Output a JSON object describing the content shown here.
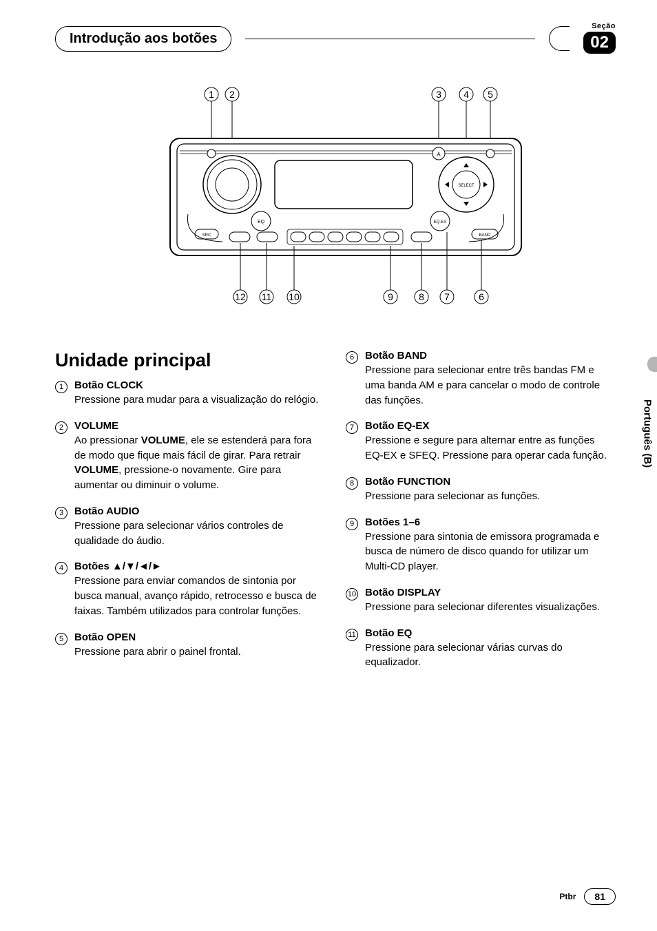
{
  "header": {
    "title": "Introdução aos botões",
    "section_label": "Seção",
    "section_number": "02"
  },
  "diagram": {
    "callouts_top": [
      "1",
      "2",
      "3",
      "4",
      "5"
    ],
    "callouts_bottom": [
      "12",
      "11",
      "10",
      "9",
      "8",
      "7",
      "6"
    ],
    "label_select": "SELECT",
    "label_eq": "EQ",
    "label_eqex": "EQ-EX",
    "label_src": "SRC",
    "label_band": "BAND",
    "label_a": "A",
    "stroke": "#000000",
    "fill": "#ffffff"
  },
  "main_heading": "Unidade principal",
  "items_left": [
    {
      "num": "1",
      "title": "Botão CLOCK",
      "desc": "Pressione para mudar para a visualização do relógio."
    },
    {
      "num": "2",
      "title": "VOLUME",
      "desc": "Ao pressionar <b>VOLUME</b>, ele se estenderá para fora de modo que fique mais fácil de girar. Para retrair <b>VOLUME</b>, pressione-o novamente. Gire para aumentar ou diminuir o volume."
    },
    {
      "num": "3",
      "title": "Botão AUDIO",
      "desc": "Pressione para selecionar vários controles de qualidade do áudio."
    },
    {
      "num": "4",
      "title": "Botões ▲/▼/◄/►",
      "desc": "Pressione para enviar comandos de sintonia por busca manual, avanço rápido, retrocesso e busca de faixas. Também utilizados para controlar funções."
    },
    {
      "num": "5",
      "title": "Botão OPEN",
      "desc": "Pressione para abrir o painel frontal."
    }
  ],
  "items_right": [
    {
      "num": "6",
      "title": "Botão BAND",
      "desc": "Pressione para selecionar entre três bandas FM e uma banda AM e para cancelar o modo de controle das funções."
    },
    {
      "num": "7",
      "title": "Botão EQ-EX",
      "desc": "Pressione e segure para alternar entre as funções EQ-EX e SFEQ. Pressione para operar cada função."
    },
    {
      "num": "8",
      "title": "Botão FUNCTION",
      "desc": "Pressione para selecionar as funções."
    },
    {
      "num": "9",
      "title": "Botões 1–6",
      "desc": "Pressione para sintonia de emissora programada e busca de número de disco quando for utilizar um Multi-CD player."
    },
    {
      "num": "10",
      "title": "Botão DISPLAY",
      "desc": "Pressione para selecionar diferentes visualizações."
    },
    {
      "num": "11",
      "title": "Botão EQ",
      "desc": "Pressione para selecionar várias curvas do equalizador."
    }
  ],
  "side_tab": "Português (B)",
  "footer": {
    "lang": "Ptbr",
    "page": "81"
  }
}
